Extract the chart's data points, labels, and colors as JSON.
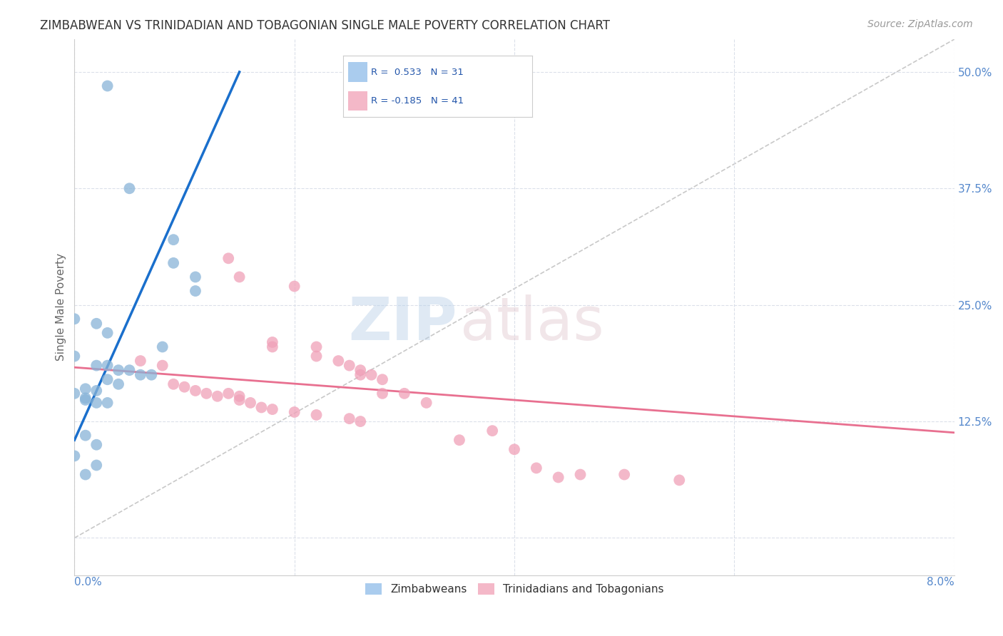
{
  "title": "ZIMBABWEAN VS TRINIDADIAN AND TOBAGONIAN SINGLE MALE POVERTY CORRELATION CHART",
  "source": "Source: ZipAtlas.com",
  "ylabel": "Single Male Poverty",
  "yticks": [
    0.0,
    0.125,
    0.25,
    0.375,
    0.5
  ],
  "ytick_labels": [
    "",
    "12.5%",
    "25.0%",
    "37.5%",
    "50.0%"
  ],
  "xmin": 0.0,
  "xmax": 0.08,
  "ymin": -0.04,
  "ymax": 0.535,
  "legend_label_blue": "Zimbabweans",
  "legend_label_pink": "Trinidadians and Tobagonians",
  "blue_scatter": [
    [
      0.003,
      0.485
    ],
    [
      0.005,
      0.375
    ],
    [
      0.0,
      0.235
    ],
    [
      0.009,
      0.32
    ],
    [
      0.009,
      0.295
    ],
    [
      0.011,
      0.28
    ],
    [
      0.011,
      0.265
    ],
    [
      0.002,
      0.23
    ],
    [
      0.003,
      0.22
    ],
    [
      0.008,
      0.205
    ],
    [
      0.0,
      0.195
    ],
    [
      0.002,
      0.185
    ],
    [
      0.003,
      0.185
    ],
    [
      0.004,
      0.18
    ],
    [
      0.005,
      0.18
    ],
    [
      0.006,
      0.175
    ],
    [
      0.007,
      0.175
    ],
    [
      0.003,
      0.17
    ],
    [
      0.004,
      0.165
    ],
    [
      0.001,
      0.16
    ],
    [
      0.002,
      0.158
    ],
    [
      0.0,
      0.155
    ],
    [
      0.001,
      0.15
    ],
    [
      0.001,
      0.148
    ],
    [
      0.002,
      0.145
    ],
    [
      0.003,
      0.145
    ],
    [
      0.001,
      0.11
    ],
    [
      0.002,
      0.1
    ],
    [
      0.0,
      0.088
    ],
    [
      0.002,
      0.078
    ],
    [
      0.001,
      0.068
    ]
  ],
  "pink_scatter": [
    [
      0.014,
      0.3
    ],
    [
      0.015,
      0.28
    ],
    [
      0.018,
      0.21
    ],
    [
      0.018,
      0.205
    ],
    [
      0.02,
      0.27
    ],
    [
      0.022,
      0.205
    ],
    [
      0.022,
      0.195
    ],
    [
      0.024,
      0.19
    ],
    [
      0.025,
      0.185
    ],
    [
      0.026,
      0.18
    ],
    [
      0.026,
      0.175
    ],
    [
      0.027,
      0.175
    ],
    [
      0.028,
      0.17
    ],
    [
      0.006,
      0.19
    ],
    [
      0.008,
      0.185
    ],
    [
      0.009,
      0.165
    ],
    [
      0.01,
      0.162
    ],
    [
      0.011,
      0.158
    ],
    [
      0.012,
      0.155
    ],
    [
      0.013,
      0.152
    ],
    [
      0.014,
      0.155
    ],
    [
      0.015,
      0.152
    ],
    [
      0.015,
      0.148
    ],
    [
      0.016,
      0.145
    ],
    [
      0.017,
      0.14
    ],
    [
      0.018,
      0.138
    ],
    [
      0.02,
      0.135
    ],
    [
      0.022,
      0.132
    ],
    [
      0.025,
      0.128
    ],
    [
      0.026,
      0.125
    ],
    [
      0.028,
      0.155
    ],
    [
      0.03,
      0.155
    ],
    [
      0.032,
      0.145
    ],
    [
      0.035,
      0.105
    ],
    [
      0.038,
      0.115
    ],
    [
      0.04,
      0.095
    ],
    [
      0.042,
      0.075
    ],
    [
      0.044,
      0.065
    ],
    [
      0.046,
      0.068
    ],
    [
      0.05,
      0.068
    ],
    [
      0.055,
      0.062
    ]
  ],
  "blue_line_x": [
    0.0,
    0.015
  ],
  "blue_line_y": [
    0.105,
    0.5
  ],
  "pink_line_x": [
    0.0,
    0.08
  ],
  "pink_line_y": [
    0.183,
    0.113
  ],
  "dash_line_x": [
    0.0,
    0.08
  ],
  "dash_line_y": [
    0.0,
    0.535
  ],
  "bg_color": "#ffffff",
  "blue_dot_color": "#88b4d8",
  "pink_dot_color": "#f0a0b8",
  "blue_line_color": "#1a6fcc",
  "pink_line_color": "#e87090",
  "grid_color": "#d8dde8",
  "axis_color": "#5588cc",
  "title_color": "#333333"
}
